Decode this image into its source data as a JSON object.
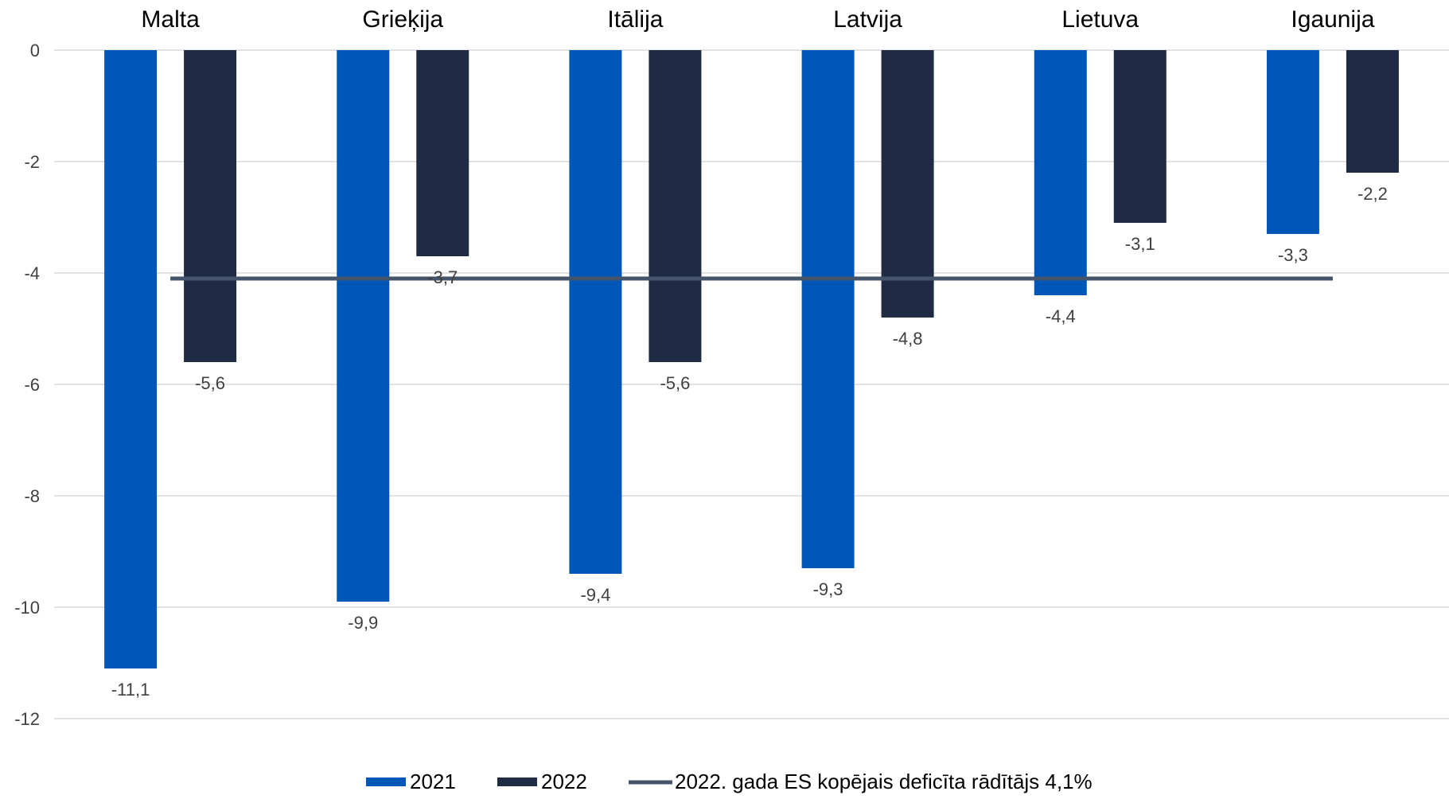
{
  "chart_data": {
    "type": "bar",
    "categories": [
      "Malta",
      "Grieķija",
      "Itālija",
      "Latvija",
      "Lietuva",
      "Igaunija"
    ],
    "series": [
      {
        "name": "2021",
        "values": [
          -11.1,
          -9.9,
          -9.4,
          -9.3,
          -4.4,
          -3.3
        ],
        "color": "#0057B8"
      },
      {
        "name": "2022",
        "values": [
          -5.6,
          -3.7,
          -5.6,
          -4.8,
          -3.1,
          -2.2
        ],
        "color": "#1F2A44"
      }
    ],
    "reference_line": {
      "name": "2022. gada ES kopējais deficīta rādītājs 4,1%",
      "value": -4.1,
      "color": "#44546A"
    },
    "data_labels": {
      "2021": [
        "-11,1",
        "-9,9",
        "-9,4",
        "-9,3",
        "-4,4",
        "-3,3"
      ],
      "2022": [
        "-5,6",
        "-3,7",
        "-5,6",
        "-4,8",
        "-3,1",
        "-2,2"
      ]
    },
    "y_ticks": [
      0,
      -2,
      -4,
      -6,
      -8,
      -10,
      -12
    ],
    "y_tick_labels": [
      "0",
      "-2",
      "-4",
      "-6",
      "-8",
      "-10",
      "-12"
    ],
    "ylim": [
      -12,
      0
    ],
    "category_axis_position": "top",
    "grid": true,
    "legend_position": "bottom"
  }
}
